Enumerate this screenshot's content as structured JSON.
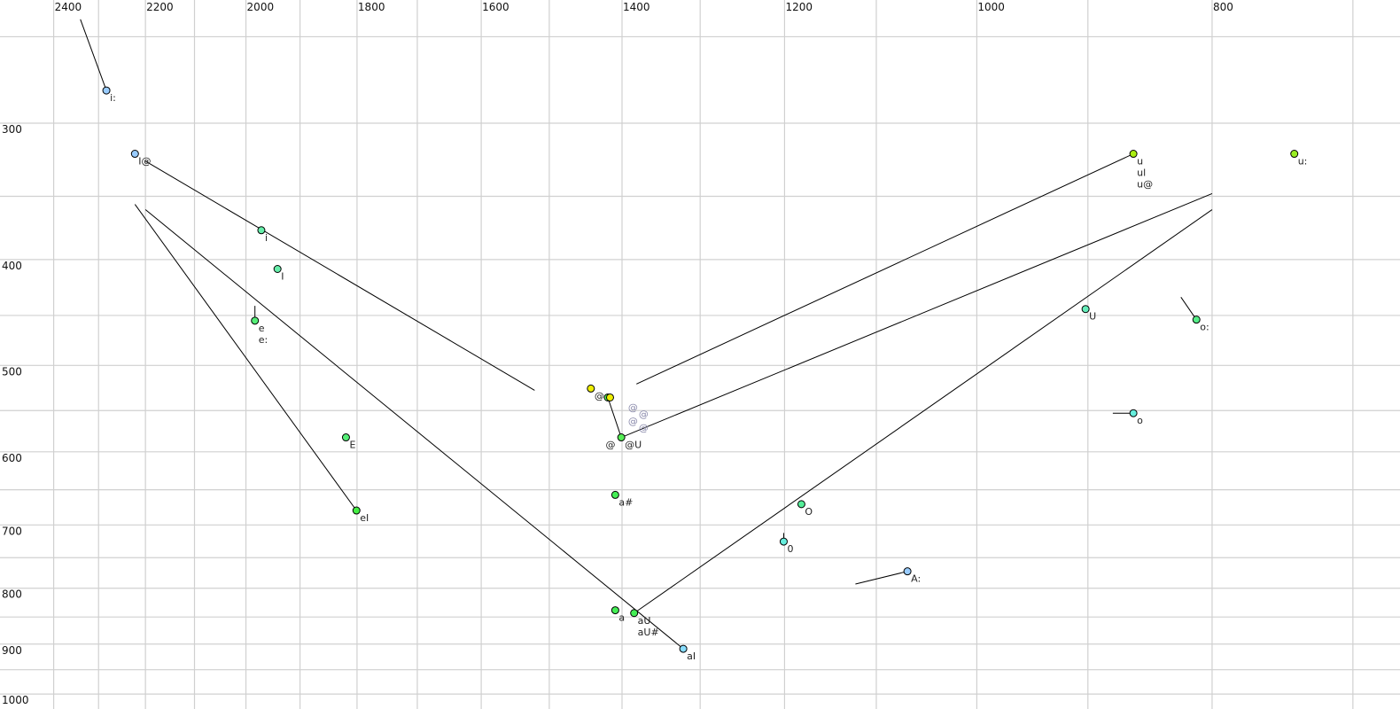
{
  "chart_data": {
    "type": "scatter",
    "title": "",
    "xlabel": "",
    "ylabel": "",
    "x_scale": "log",
    "y_scale": "log",
    "x_reversed": true,
    "x_ticks": [
      2400,
      2200,
      2000,
      1800,
      1600,
      1400,
      1200,
      1000,
      800
    ],
    "y_ticks": [
      300,
      400,
      500,
      600,
      700,
      800,
      900,
      1000
    ],
    "grid": true,
    "x_grid_step": 100,
    "y_grid_step": 50,
    "xlim": [
      2400,
      700
    ],
    "ylim": [
      250,
      1000
    ],
    "points": [
      {
        "labels": [
          "i:"
        ],
        "F2": 2283,
        "F1": 280,
        "color": "#99ccff",
        "trail": [
          2340,
          241
        ]
      },
      {
        "labels": [
          "I@"
        ],
        "F2": 2222,
        "F1": 320,
        "color": "#99ccff"
      },
      {
        "labels": [
          "i"
        ],
        "F2": 1971,
        "F1": 376,
        "color": "#66eeaa"
      },
      {
        "labels": [
          "I"
        ],
        "F2": 1941,
        "F1": 408,
        "color": "#66eeaa"
      },
      {
        "labels": [
          "e",
          "e:"
        ],
        "F2": 1983,
        "F1": 455,
        "color": "#55ee77",
        "trail": [
          1983,
          441
        ]
      },
      {
        "labels": [
          "E"
        ],
        "F2": 1819,
        "F1": 582,
        "color": "#55ee77"
      },
      {
        "labels": [
          "eI"
        ],
        "F2": 1801,
        "F1": 679,
        "color": "#44ee44"
      },
      {
        "labels": [
          "@"
        ],
        "F2": 1442,
        "F1": 525,
        "color": "#eeee00"
      },
      {
        "labels": [],
        "F2": 1419,
        "F1": 535,
        "color": "#55ee55",
        "trail": [
          1401,
          582
        ]
      },
      {
        "labels": [],
        "F2": 1416,
        "F1": 535,
        "color": "#eeee00"
      },
      {
        "labels": [
          "@U"
        ],
        "F2": 1401,
        "F1": 582,
        "color": "#55ee55"
      },
      {
        "labels": [
          "a#"
        ],
        "F2": 1409,
        "F1": 657,
        "color": "#44ee55"
      },
      {
        "labels": [
          "a"
        ],
        "F2": 1409,
        "F1": 838,
        "color": "#44ee55"
      },
      {
        "labels": [
          "aU",
          "aU#"
        ],
        "F2": 1384,
        "F1": 843,
        "color": "#44ee55"
      },
      {
        "labels": [
          "aI"
        ],
        "F2": 1321,
        "F1": 909,
        "color": "#88ddff"
      },
      {
        "labels": [
          "O"
        ],
        "F2": 1181,
        "F1": 670,
        "color": "#55ee99"
      },
      {
        "labels": [
          "0"
        ],
        "F2": 1201,
        "F1": 725,
        "color": "#66eedd",
        "trail": [
          1201,
          712
        ]
      },
      {
        "labels": [
          "A:"
        ],
        "F2": 1068,
        "F1": 772,
        "color": "#99ccff",
        "trail": [
          1122,
          793
        ]
      },
      {
        "labels": [
          "U"
        ],
        "F2": 902,
        "F1": 444,
        "color": "#66eebb"
      },
      {
        "labels": [
          "u",
          "ul",
          "u@"
        ],
        "F2": 862,
        "F1": 320,
        "color": "#aaee11"
      },
      {
        "labels": [
          "u:"
        ],
        "F2": 740,
        "F1": 320,
        "color": "#99ee22"
      },
      {
        "labels": [
          "o:"
        ],
        "F2": 812,
        "F1": 454,
        "color": "#55ee88",
        "trail": [
          824,
          433
        ]
      },
      {
        "labels": [
          "o"
        ],
        "F2": 862,
        "F1": 553,
        "color": "#66eedd",
        "trail": [
          879,
          553
        ]
      }
    ],
    "annotations": [
      {
        "text": "@",
        "F2": 1392,
        "F1": 546,
        "color": "#8888aa"
      },
      {
        "text": "@",
        "F2": 1392,
        "F1": 554,
        "color": "#8888aa"
      },
      {
        "text": "@",
        "F2": 1392,
        "F1": 562,
        "color": "#8888aa"
      },
      {
        "text": "@",
        "F2": 1392,
        "F1": 570,
        "color": "#8888aa"
      },
      {
        "text": "@",
        "F2": 1422,
        "F1": 591,
        "color": "#222222"
      }
    ],
    "trajectories": [
      {
        "from": [
          2200,
          325
        ],
        "to": [
          1521,
          527
        ]
      },
      {
        "from": [
          2222,
          356
        ],
        "to": [
          1801,
          679
        ]
      },
      {
        "from": [
          2200,
          360
        ],
        "to": [
          1321,
          909
        ]
      },
      {
        "from": [
          1401,
          582
        ],
        "to": [
          800,
          348
        ]
      },
      {
        "from": [
          1381,
          520
        ],
        "to": [
          862,
          320
        ]
      },
      {
        "from": [
          1384,
          843
        ],
        "to": [
          800,
          360
        ]
      }
    ]
  }
}
